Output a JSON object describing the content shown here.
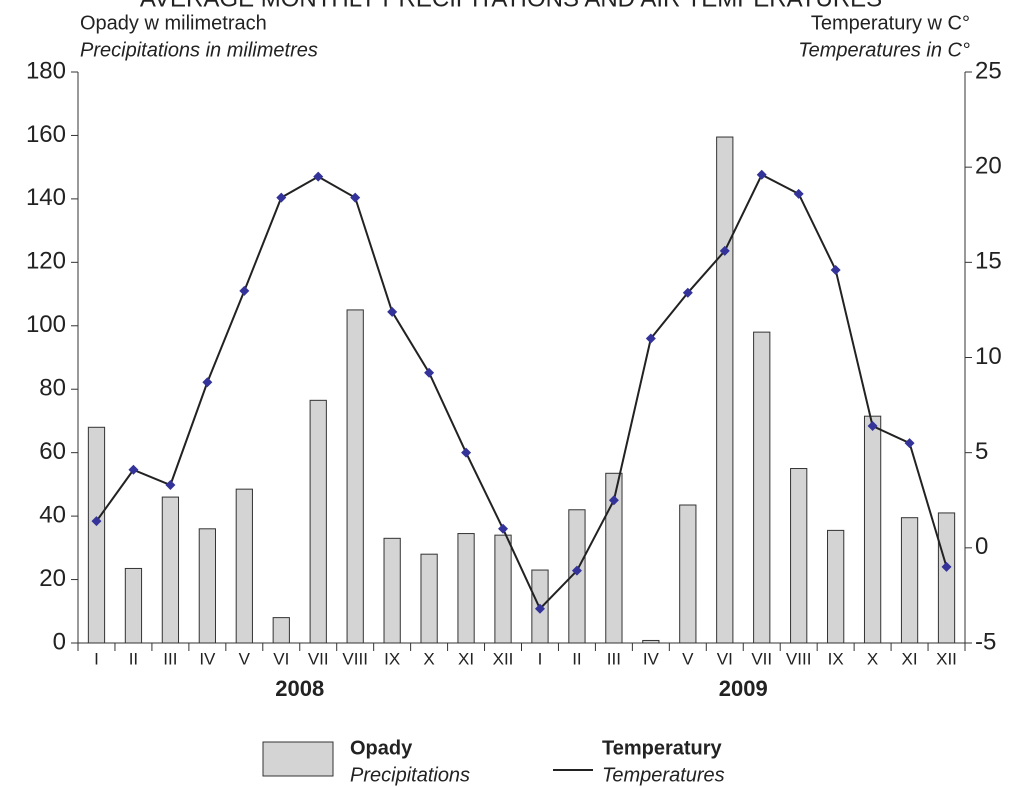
{
  "chart_data": {
    "type": "bar",
    "title": "AVERAGE MONTHLY PRECIPITATIONS AND AIR TEMPERATURES",
    "y_label": "Opady w milimetrach",
    "y_label_en": "Precipitations in milimetres",
    "y2_label": "Temperatury w C°",
    "y2_label_en": "Temperatures in C°",
    "categories": [
      "I",
      "II",
      "III",
      "IV",
      "V",
      "VI",
      "VII",
      "VIII",
      "IX",
      "X",
      "XI",
      "XII",
      "I",
      "II",
      "III",
      "IV",
      "V",
      "VI",
      "VII",
      "VIII",
      "IX",
      "X",
      "XI",
      "XII"
    ],
    "groups": [
      "2008",
      "2009"
    ],
    "series": [
      {
        "name": "Opady",
        "name_en": "Precipitations",
        "type": "bar",
        "color": "#d4d4d4",
        "values": [
          68,
          23.5,
          46,
          36,
          48.5,
          8,
          76.5,
          105,
          33,
          28,
          34.5,
          34,
          23,
          42,
          53.5,
          0.8,
          43.5,
          159.5,
          98,
          55,
          35.5,
          71.5,
          39.5,
          41
        ]
      },
      {
        "name": "Temperatury",
        "name_en": "Temperatures",
        "type": "line",
        "axis": "y2",
        "color": "#222222",
        "marker_color": "#33339a",
        "values": [
          1.4,
          4.1,
          3.3,
          8.7,
          13.5,
          18.4,
          19.5,
          18.4,
          12.4,
          9.2,
          5.0,
          1.0,
          -3.2,
          -1.2,
          2.5,
          11.0,
          13.4,
          15.6,
          19.6,
          18.6,
          14.6,
          6.4,
          5.5,
          -1.0
        ]
      }
    ],
    "ylim": [
      0,
      180
    ],
    "yticks": [
      0,
      20,
      40,
      60,
      80,
      100,
      120,
      140,
      160,
      180
    ],
    "y2lim": [
      -5,
      25
    ],
    "y2ticks": [
      -5,
      0,
      5,
      10,
      15,
      20,
      25
    ],
    "grid": false
  }
}
